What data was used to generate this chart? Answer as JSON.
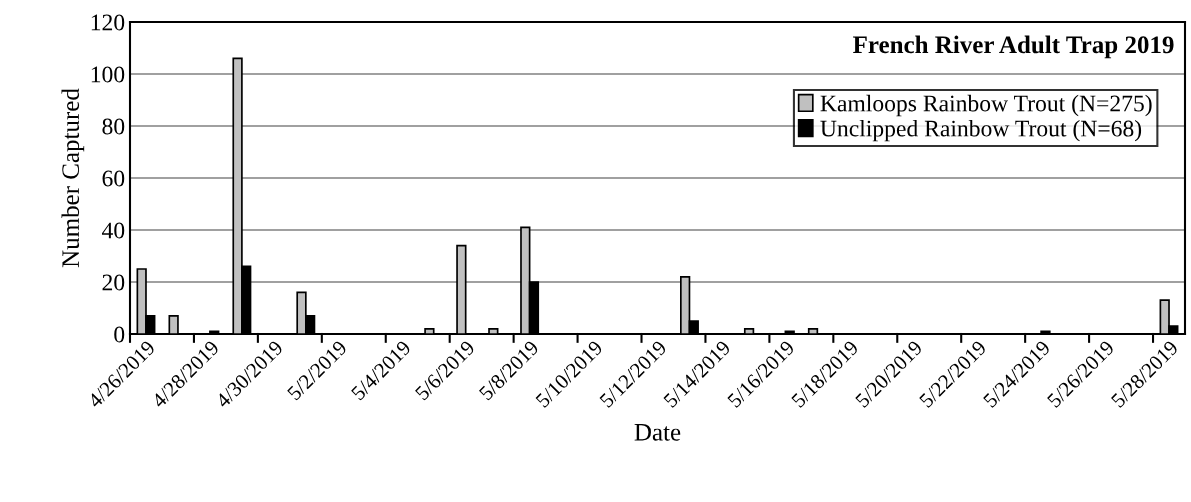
{
  "chart_data": {
    "type": "bar",
    "title": "French River Adult Trap 2019",
    "xlabel": "Date",
    "ylabel": "Number Captured",
    "categories": [
      "4/26/2019",
      null,
      "4/28/2019",
      null,
      "4/30/2019",
      null,
      "5/2/2019",
      null,
      "5/4/2019",
      null,
      "5/6/2019",
      null,
      "5/8/2019",
      null,
      "5/10/2019",
      null,
      "5/12/2019",
      null,
      "5/14/2019",
      null,
      "5/16/2019",
      null,
      "5/18/2019",
      null,
      "5/20/2019",
      null,
      "5/22/2019",
      null,
      "5/24/2019",
      null,
      "5/26/2019",
      null,
      "5/28/2019"
    ],
    "series": [
      {
        "name": "Kamloops Rainbow Trout (N=275)",
        "color": "#c0c0c0",
        "values": [
          25,
          7,
          0,
          106,
          0,
          16,
          0,
          0,
          0,
          2,
          34,
          2,
          41,
          0,
          0,
          0,
          0,
          22,
          0,
          2,
          0,
          2,
          0,
          0,
          0,
          0,
          0,
          0,
          0,
          0,
          0,
          0,
          13
        ]
      },
      {
        "name": "Unclipped Rainbow Trout (N=68)",
        "color": "#000000",
        "values": [
          7,
          0,
          1,
          26,
          0,
          7,
          0,
          0,
          0,
          0,
          0,
          0,
          20,
          0,
          0,
          0,
          0,
          5,
          0,
          0,
          1,
          0,
          0,
          0,
          0,
          0,
          0,
          0,
          1,
          0,
          0,
          0,
          3
        ]
      }
    ],
    "ylim": [
      0,
      120
    ],
    "yticks": [
      0,
      20,
      40,
      60,
      80,
      100,
      120
    ],
    "grid": "y",
    "legend": "top right"
  }
}
